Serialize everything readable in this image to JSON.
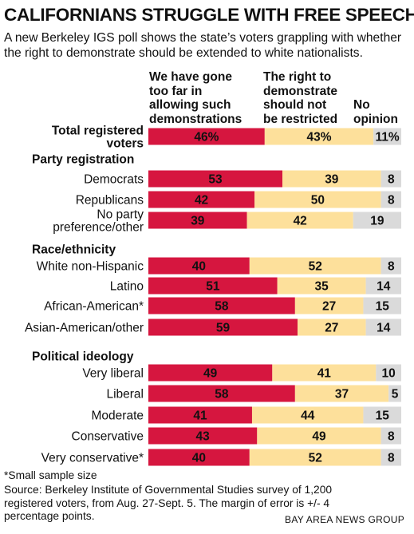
{
  "title": "CALIFORNIANS STRUGGLE WITH FREE SPEECH",
  "subtitle": "A new Berkeley IGS poll shows the state’s voters grappling with whether the right to demonstrate should be extended to white nationalists.",
  "column_headers": [
    "We have gone\ntoo far in\nallowing such\ndemonstrations",
    "The right to\ndemonstrate\nshould not\nbe restricted",
    "No\nopinion"
  ],
  "colors": {
    "too_far": "#d6163f",
    "not_restricted": "#fde09b",
    "no_opinion": "#dadada"
  },
  "chart_data": {
    "type": "bar",
    "stacked": true,
    "orientation": "horizontal",
    "series": [
      {
        "name": "We have gone too far in allowing such demonstrations"
      },
      {
        "name": "The right to demonstrate should not be restricted"
      },
      {
        "name": "No opinion"
      }
    ],
    "groups": [
      {
        "label": "",
        "rows": [
          {
            "label": "Total registered\nvoters",
            "bold": true,
            "values": [
              46,
              43,
              11
            ],
            "labels": [
              "46%",
              "43%",
              "11%"
            ]
          }
        ]
      },
      {
        "label": "Party registration",
        "rows": [
          {
            "label": "Democrats",
            "values": [
              53,
              39,
              8
            ],
            "labels": [
              "53",
              "39",
              "8"
            ]
          },
          {
            "label": "Republicans",
            "values": [
              42,
              50,
              8
            ],
            "labels": [
              "42",
              "50",
              "8"
            ]
          },
          {
            "label": "No party\npreference/other",
            "values": [
              39,
              42,
              19
            ],
            "labels": [
              "39",
              "42",
              "19"
            ]
          }
        ]
      },
      {
        "label": "Race/ethnicity",
        "rows": [
          {
            "label": "White non-Hispanic",
            "values": [
              40,
              52,
              8
            ],
            "labels": [
              "40",
              "52",
              "8"
            ]
          },
          {
            "label": "Latino",
            "values": [
              51,
              35,
              14
            ],
            "labels": [
              "51",
              "35",
              "14"
            ]
          },
          {
            "label": "African-American*",
            "values": [
              58,
              27,
              15
            ],
            "labels": [
              "58",
              "27",
              "15"
            ]
          },
          {
            "label": "Asian-American/other",
            "values": [
              59,
              27,
              14
            ],
            "labels": [
              "59",
              "27",
              "14"
            ]
          }
        ]
      },
      {
        "label": "Political ideology",
        "rows": [
          {
            "label": "Very liberal",
            "values": [
              49,
              41,
              10
            ],
            "labels": [
              "49",
              "41",
              "10"
            ]
          },
          {
            "label": "Liberal",
            "values": [
              58,
              37,
              5
            ],
            "labels": [
              "58",
              "37",
              "5"
            ]
          },
          {
            "label": "Moderate",
            "values": [
              41,
              44,
              15
            ],
            "labels": [
              "41",
              "44",
              "15"
            ]
          },
          {
            "label": "Conservative",
            "values": [
              43,
              49,
              8
            ],
            "labels": [
              "43",
              "49",
              "8"
            ]
          },
          {
            "label": "Very conservative*",
            "values": [
              40,
              52,
              8
            ],
            "labels": [
              "40",
              "52",
              "8"
            ]
          }
        ]
      }
    ]
  },
  "footnote": "*Small sample size",
  "source": "Source: Berkeley Institute of Governmental Studies survey of 1,200 registered voters, from Aug. 27-Sept. 5. The margin of error is +/- 4 percentage points.",
  "credit": "BAY AREA NEWS GROUP"
}
